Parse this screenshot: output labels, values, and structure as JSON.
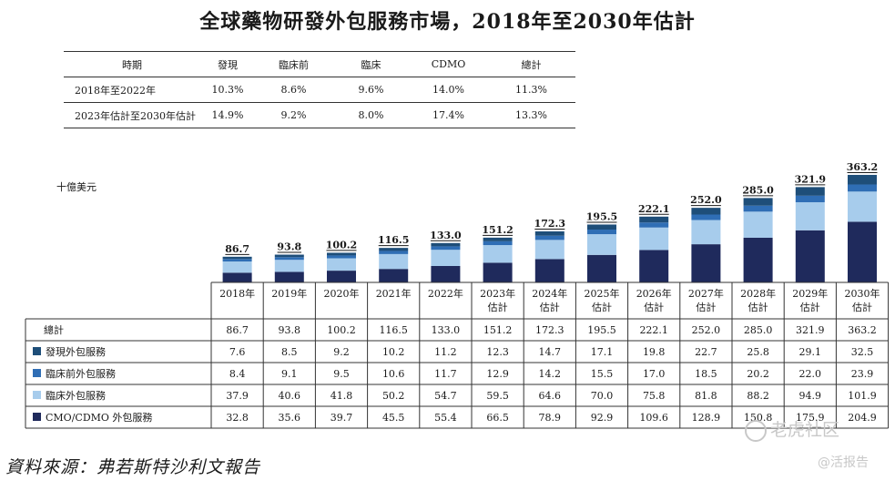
{
  "title": "全球藥物研發外包服務市場，2018年至2030年估計",
  "cagr_table": {
    "headers": [
      "時期",
      "發現",
      "臨床前",
      "臨床",
      "CDMO",
      "總計"
    ],
    "rows": [
      [
        "2018年至2022年",
        "10.3%",
        "8.6%",
        "9.6%",
        "14.0%",
        "11.3%"
      ],
      [
        "2023年估計至2030年估計",
        "14.9%",
        "9.2%",
        "8.0%",
        "17.4%",
        "13.3%"
      ]
    ]
  },
  "unit_label": "十億美元",
  "chart_data": {
    "type": "bar",
    "stacked": true,
    "unit": "十億美元",
    "categories": [
      "2018年",
      "2019年",
      "2020年",
      "2021年",
      "2022年",
      "2023年估計",
      "2024年估計",
      "2025年估計",
      "2026年估計",
      "2027年估計",
      "2028年估計",
      "2029年估計",
      "2030年估計"
    ],
    "category_lines": [
      [
        "2018年"
      ],
      [
        "2019年"
      ],
      [
        "2020年"
      ],
      [
        "2021年"
      ],
      [
        "2022年"
      ],
      [
        "2023年",
        "估計"
      ],
      [
        "2024年",
        "估計"
      ],
      [
        "2025年",
        "估計"
      ],
      [
        "2026年",
        "估計"
      ],
      [
        "2027年",
        "估計"
      ],
      [
        "2028年",
        "估計"
      ],
      [
        "2029年",
        "估計"
      ],
      [
        "2030年",
        "估計"
      ]
    ],
    "totals_label": "總計",
    "totals": [
      "86.7",
      "93.8",
      "100.2",
      "116.5",
      "133.0",
      "151.2",
      "172.3",
      "195.5",
      "222.1",
      "252.0",
      "285.0",
      "321.9",
      "363.2"
    ],
    "series": [
      {
        "name": "發現外包服務",
        "color": "#1e4e79",
        "values": [
          "7.6",
          "8.5",
          "9.2",
          "10.2",
          "11.2",
          "12.3",
          "14.7",
          "17.1",
          "19.8",
          "22.7",
          "25.8",
          "29.1",
          "32.5"
        ]
      },
      {
        "name": "臨床前外包服務",
        "color": "#2f6eb5",
        "values": [
          "8.4",
          "9.1",
          "9.5",
          "10.6",
          "11.7",
          "12.9",
          "14.2",
          "15.5",
          "17.0",
          "18.5",
          "20.2",
          "22.0",
          "23.9"
        ]
      },
      {
        "name": "臨床外包服務",
        "color": "#a7ccec",
        "values": [
          "37.9",
          "40.6",
          "41.8",
          "50.2",
          "54.7",
          "59.5",
          "64.6",
          "70.0",
          "75.8",
          "81.8",
          "88.2",
          "94.9",
          "101.9"
        ]
      },
      {
        "name": "CMO/CDMO 外包服務",
        "color": "#1f2a5c",
        "values": [
          "32.8",
          "35.6",
          "39.7",
          "45.5",
          "55.4",
          "66.5",
          "78.9",
          "92.9",
          "109.6",
          "128.9",
          "150.8",
          "175.9",
          "204.9"
        ]
      }
    ]
  },
  "source": "資料來源：弗若斯特沙利文報告",
  "watermark": {
    "main": "老虎社区",
    "sub": "@活报告"
  }
}
